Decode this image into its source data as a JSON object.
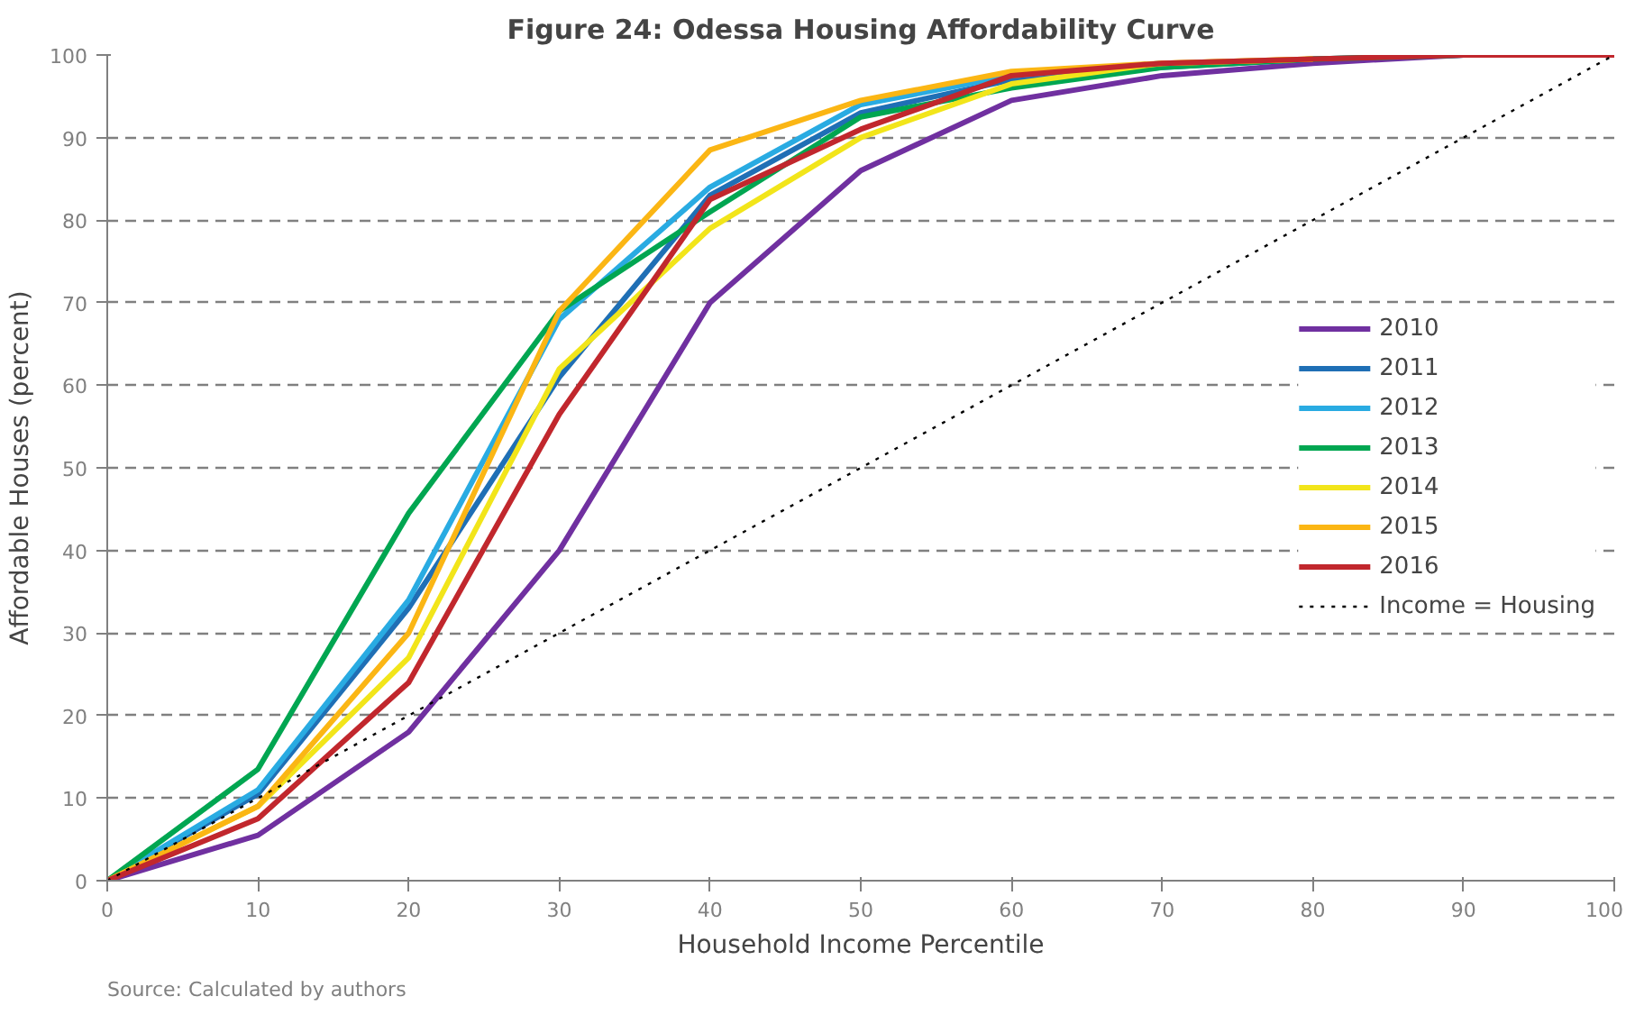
{
  "chart_data": {
    "type": "line",
    "title": "Figure 24: Odessa Housing Affordability Curve",
    "xlabel": "Household Income Percentile",
    "ylabel": "Affordable Houses (percent)",
    "x": [
      0,
      10,
      20,
      30,
      40,
      50,
      60,
      70,
      80,
      90,
      100
    ],
    "series": [
      {
        "name": "2010",
        "color": "#7030a0",
        "values": [
          0,
          5.5,
          18,
          40,
          70,
          86,
          94.5,
          97.5,
          99,
          100,
          100
        ]
      },
      {
        "name": "2011",
        "color": "#1f6fb5",
        "values": [
          0,
          10.5,
          33,
          61,
          83,
          93,
          97,
          98.5,
          99.5,
          100,
          100
        ]
      },
      {
        "name": "2012",
        "color": "#29abe2",
        "values": [
          0,
          11,
          34,
          68,
          84,
          94,
          97.5,
          99,
          null,
          null,
          null
        ]
      },
      {
        "name": "2013",
        "color": "#00a651",
        "values": [
          0,
          13.5,
          44.5,
          69,
          81,
          92.5,
          96,
          98.5,
          99.5,
          100,
          100
        ]
      },
      {
        "name": "2014",
        "color": "#f2e51a",
        "values": [
          0,
          9,
          27,
          62,
          79,
          90,
          96.5,
          99,
          99.5,
          null,
          null
        ]
      },
      {
        "name": "2015",
        "color": "#fbb614",
        "values": [
          0,
          9,
          30,
          69,
          88.5,
          94.5,
          98,
          99,
          99.5,
          null,
          null
        ]
      },
      {
        "name": "2016",
        "color": "#c1272d",
        "values": [
          0,
          7.5,
          24,
          56.5,
          82.5,
          91,
          97.5,
          99,
          99.5,
          100,
          100
        ]
      },
      {
        "name": "Income = Housing",
        "color": "#000000",
        "line_style": "dotted",
        "values": [
          0,
          10,
          20,
          30,
          40,
          50,
          60,
          70,
          80,
          90,
          100
        ]
      }
    ],
    "xlim": [
      0,
      100
    ],
    "xticks": [
      0,
      10,
      20,
      30,
      40,
      50,
      60,
      70,
      80,
      90,
      100
    ],
    "ylim": [
      0,
      100
    ],
    "yticks": [
      0,
      10,
      20,
      30,
      40,
      50,
      60,
      70,
      80,
      90,
      100
    ],
    "grid": "y",
    "legend": "right",
    "line_style": "solid",
    "annotations": [
      "Source: Calculated by authors"
    ]
  }
}
